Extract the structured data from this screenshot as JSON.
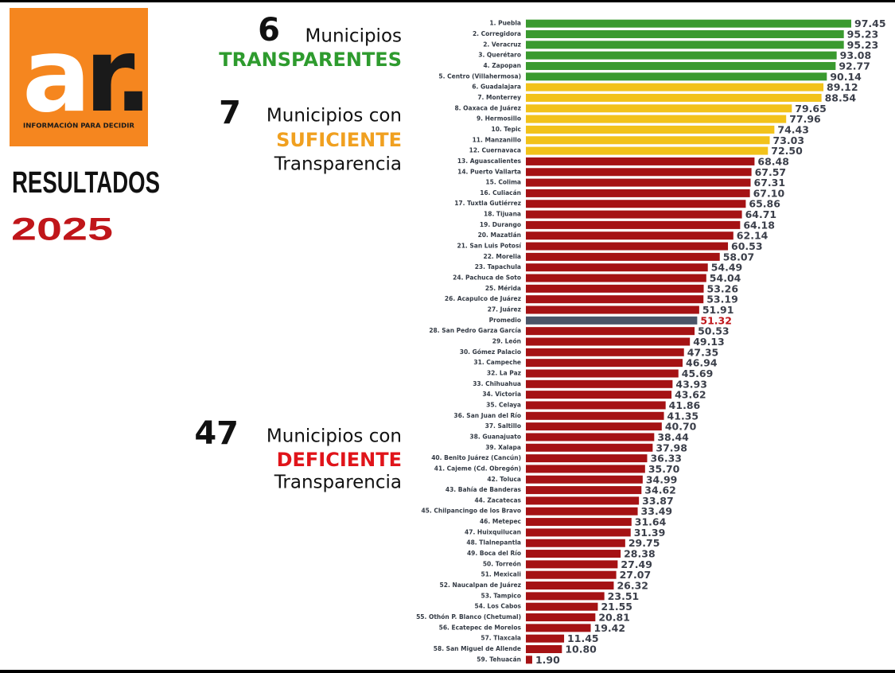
{
  "logo": {
    "letters": [
      "a",
      "r."
    ],
    "tagline": "INFORMACIÓN PARA DECIDIR"
  },
  "headline": [
    "RESULTADOS",
    "2025"
  ],
  "chart_data": {
    "type": "bar",
    "orientation": "horizontal",
    "annotations": [
      {
        "count": 6,
        "label": "Municipios",
        "highlight": "TRANSPARENTES"
      },
      {
        "count": 7,
        "label": "Municipios con",
        "highlight": "SUFICIENTE",
        "suffix": "Transparencia"
      },
      {
        "count": 47,
        "label": "Municipios con",
        "highlight": "DEFICIENTE",
        "suffix": "Transparencia"
      }
    ],
    "categories": [
      "1. Puebla",
      "2. Corregidora",
      "2. Veracruz",
      "3. Querétaro",
      "4. Zapopan",
      "5. Centro (Villahermosa)",
      "6. Guadalajara",
      "7. Monterrey",
      "8. Oaxaca de Juárez",
      "9. Hermosillo",
      "10. Tepic",
      "11. Manzanillo",
      "12. Cuernavaca",
      "13. Aguascalientes",
      "14. Puerto Vallarta",
      "15. Colima",
      "16. Culiacán",
      "17. Tuxtla Gutiérrez",
      "18. Tijuana",
      "19. Durango",
      "20. Mazatlán",
      "21. San Luis Potosí",
      "22. Morelia",
      "23. Tapachula",
      "24. Pachuca de Soto",
      "25. Mérida",
      "26. Acapulco de Juárez",
      "27. Juárez",
      "Promedio",
      "28. San Pedro Garza García",
      "29. León",
      "30. Gómez Palacio",
      "31. Campeche",
      "32. La Paz",
      "33. Chihuahua",
      "34. Victoria",
      "35. Celaya",
      "36. San Juan del Río",
      "37. Saltillo",
      "38. Guanajuato",
      "39. Xalapa",
      "40. Benito Juárez (Cancún)",
      "41. Cajeme (Cd. Obregón)",
      "42. Toluca",
      "43. Bahía de Banderas",
      "44. Zacatecas",
      "45. Chilpancingo de los Bravo",
      "46. Metepec",
      "47. Huixquilucan",
      "48. Tlalnepantla",
      "49. Boca del Río",
      "50. Torreón",
      "51. Mexicali",
      "52. Naucalpan de Juárez",
      "53. Tampico",
      "54. Los Cabos",
      "55. Othón P. Blanco (Chetumal)",
      "56. Ecatepec de Morelos",
      "57. Tlaxcala",
      "58. San Miguel de Allende",
      "59. Tehuacán"
    ],
    "values": [
      97.45,
      95.23,
      95.23,
      93.08,
      92.77,
      90.14,
      89.12,
      88.54,
      79.65,
      77.96,
      74.43,
      73.03,
      72.5,
      68.48,
      67.57,
      67.31,
      67.1,
      65.86,
      64.71,
      64.18,
      62.14,
      60.53,
      58.07,
      54.49,
      54.04,
      53.26,
      53.19,
      51.91,
      51.32,
      50.53,
      49.13,
      47.35,
      46.94,
      45.69,
      43.93,
      43.62,
      41.86,
      41.35,
      40.7,
      38.44,
      37.98,
      36.33,
      35.7,
      34.99,
      34.62,
      33.87,
      33.49,
      31.64,
      31.39,
      29.75,
      28.38,
      27.49,
      27.07,
      26.32,
      23.51,
      21.55,
      20.81,
      19.42,
      11.45,
      10.8,
      1.9
    ],
    "value_labels": [
      "97.45",
      "95.23",
      "95.23",
      "93.08",
      "92.77",
      "90.14",
      "89.12",
      "88.54",
      "79.65",
      "77.96",
      "74.43",
      "73.03",
      "72.50",
      "68.48",
      "67.57",
      "67.31",
      "67.10",
      "65.86",
      "64.71",
      "64.18",
      "62.14",
      "60.53",
      "58.07",
      "54.49",
      "54.04",
      "53.26",
      "53.19",
      "51.91",
      "51.32",
      "50.53",
      "49.13",
      "47.35",
      "46.94",
      "45.69",
      "43.93",
      "43.62",
      "41.86",
      "41.35",
      "40.70",
      "38.44",
      "37.98",
      "36.33",
      "35.70",
      "34.99",
      "34.62",
      "33.87",
      "33.49",
      "31.64",
      "31.39",
      "29.75",
      "28.38",
      "27.49",
      "27.07",
      "26.32",
      "23.51",
      "21.55",
      "20.81",
      "19.42",
      "11.45",
      "10.80",
      "1.90"
    ],
    "colors": [
      "#3a9a2f",
      "#3a9a2f",
      "#3a9a2f",
      "#3a9a2f",
      "#3a9a2f",
      "#3a9a2f",
      "#f2c21a",
      "#f2c21a",
      "#f2c21a",
      "#f2c21a",
      "#f2c21a",
      "#f2c21a",
      "#f2c21a",
      "#a51214",
      "#a51214",
      "#a51214",
      "#a51214",
      "#a51214",
      "#a51214",
      "#a51214",
      "#a51214",
      "#a51214",
      "#a51214",
      "#a51214",
      "#a51214",
      "#a51214",
      "#a51214",
      "#a51214",
      "#4a5568",
      "#a51214",
      "#a51214",
      "#a51214",
      "#a51214",
      "#a51214",
      "#a51214",
      "#a51214",
      "#a51214",
      "#a51214",
      "#a51214",
      "#a51214",
      "#a51214",
      "#a51214",
      "#a51214",
      "#a51214",
      "#a51214",
      "#a51214",
      "#a51214",
      "#a51214",
      "#a51214",
      "#a51214",
      "#a51214",
      "#a51214",
      "#a51214",
      "#a51214",
      "#a51214",
      "#a51214",
      "#a51214",
      "#a51214",
      "#a51214",
      "#a51214",
      "#a51214"
    ],
    "value_label_colors": [
      "#3b3f4a",
      "#3b3f4a",
      "#3b3f4a",
      "#3b3f4a",
      "#3b3f4a",
      "#3b3f4a",
      "#3b3f4a",
      "#3b3f4a",
      "#3b3f4a",
      "#3b3f4a",
      "#3b3f4a",
      "#3b3f4a",
      "#3b3f4a",
      "#3b3f4a",
      "#3b3f4a",
      "#3b3f4a",
      "#3b3f4a",
      "#3b3f4a",
      "#3b3f4a",
      "#3b3f4a",
      "#3b3f4a",
      "#3b3f4a",
      "#3b3f4a",
      "#3b3f4a",
      "#3b3f4a",
      "#3b3f4a",
      "#3b3f4a",
      "#3b3f4a",
      "#c0161a",
      "#3b3f4a",
      "#3b3f4a",
      "#3b3f4a",
      "#3b3f4a",
      "#3b3f4a",
      "#3b3f4a",
      "#3b3f4a",
      "#3b3f4a",
      "#3b3f4a",
      "#3b3f4a",
      "#3b3f4a",
      "#3b3f4a",
      "#3b3f4a",
      "#3b3f4a",
      "#3b3f4a",
      "#3b3f4a",
      "#3b3f4a",
      "#3b3f4a",
      "#3b3f4a",
      "#3b3f4a",
      "#3b3f4a",
      "#3b3f4a",
      "#3b3f4a",
      "#3b3f4a",
      "#3b3f4a",
      "#3b3f4a",
      "#3b3f4a",
      "#3b3f4a",
      "#3b3f4a",
      "#3b3f4a",
      "#3b3f4a",
      "#3b3f4a"
    ]
  }
}
